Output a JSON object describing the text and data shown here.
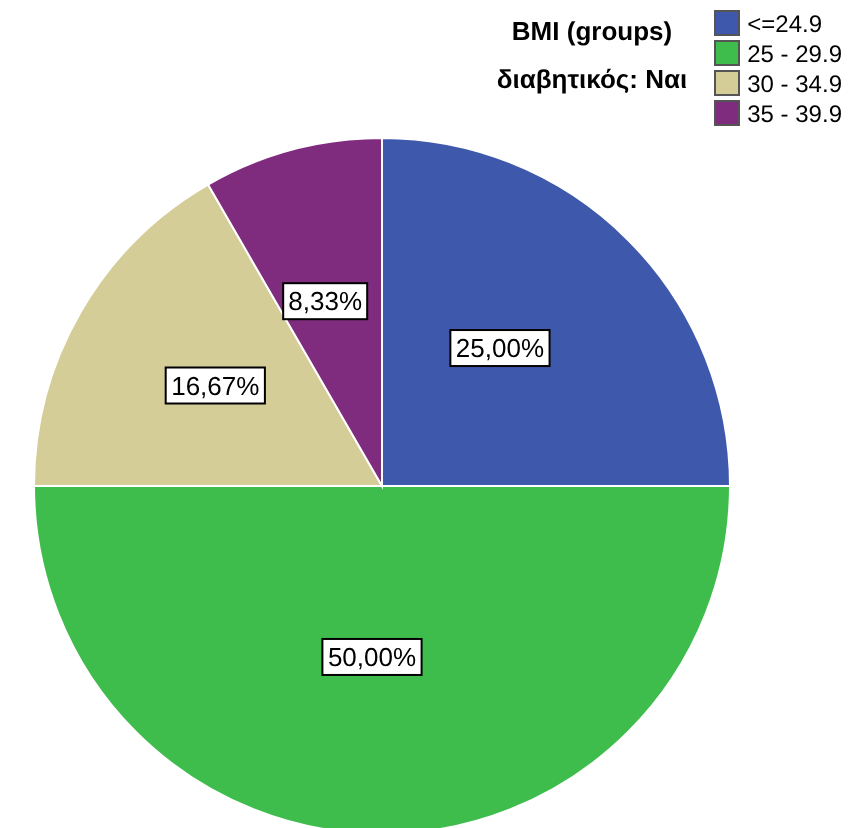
{
  "chart_data": {
    "type": "pie",
    "title": "BMI (groups)",
    "subtitle": "διαβητικός: Ναι",
    "categories": [
      "<=24.9",
      "25 - 29.9",
      "30 - 34.9",
      "35 - 39.9"
    ],
    "values": [
      25,
      50,
      16.67,
      8.33
    ],
    "colors": [
      "#3e58ac",
      "#3fbd4c",
      "#d5cd97",
      "#7f2b7e"
    ],
    "value_labels": [
      "25,00%",
      "50,00%",
      "16,67%",
      "8,33%"
    ],
    "legend": "top right"
  }
}
